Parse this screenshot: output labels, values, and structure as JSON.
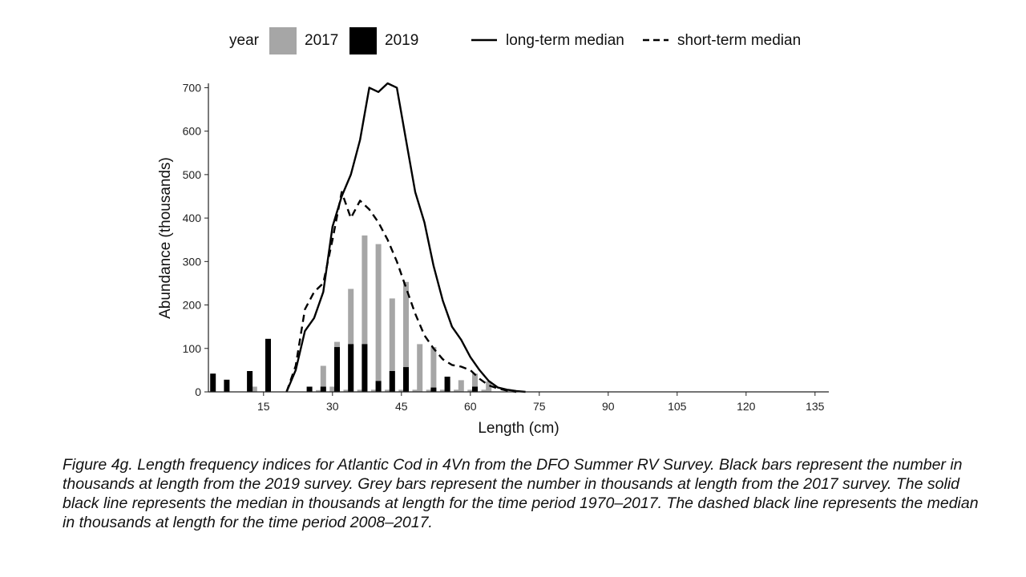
{
  "chart_data": {
    "type": "bar",
    "xlabel": "Length (cm)",
    "ylabel": "Abundance (thousands)",
    "xlim": [
      3,
      138
    ],
    "ylim": [
      0,
      710
    ],
    "xticks": [
      15,
      30,
      45,
      60,
      75,
      90,
      105,
      120,
      135
    ],
    "yticks": [
      0,
      100,
      200,
      300,
      400,
      500,
      600,
      700
    ],
    "grid": false,
    "legend_position": "top",
    "legend_title": "year",
    "series": [
      {
        "name": "2017",
        "kind": "bar",
        "color": "#a6a6a6",
        "x": [
          13,
          25,
          27,
          28,
          30,
          31,
          33,
          34,
          36,
          37,
          39,
          40,
          42,
          43,
          45,
          46,
          48,
          49,
          51,
          52,
          54,
          55,
          57,
          58,
          60,
          61,
          63,
          64
        ],
        "values": [
          12,
          2,
          4,
          60,
          12,
          115,
          5,
          237,
          5,
          360,
          5,
          340,
          5,
          215,
          5,
          253,
          5,
          110,
          5,
          103,
          5,
          27,
          5,
          27,
          5,
          42,
          5,
          24
        ]
      },
      {
        "name": "2019",
        "kind": "bar",
        "color": "#000000",
        "x": [
          4,
          7,
          12,
          16,
          25,
          28,
          31,
          34,
          37,
          40,
          43,
          46,
          49,
          52,
          55,
          58,
          61,
          64
        ],
        "values": [
          42,
          28,
          48,
          122,
          12,
          12,
          103,
          110,
          110,
          25,
          48,
          57,
          0,
          10,
          35,
          0,
          12,
          0
        ]
      },
      {
        "name": "long-term median",
        "kind": "line",
        "style": "solid",
        "x": [
          20,
          22,
          24,
          26,
          28,
          30,
          32,
          34,
          36,
          38,
          40,
          42,
          44,
          46,
          48,
          50,
          52,
          54,
          56,
          58,
          60,
          62,
          64,
          66,
          68,
          70,
          72
        ],
        "values": [
          0,
          50,
          140,
          170,
          230,
          380,
          450,
          500,
          580,
          700,
          690,
          710,
          700,
          580,
          460,
          390,
          290,
          210,
          150,
          120,
          80,
          50,
          25,
          10,
          5,
          2,
          0
        ]
      },
      {
        "name": "short-term median",
        "kind": "line",
        "style": "dashed",
        "x": [
          20,
          22,
          24,
          26,
          28,
          30,
          32,
          34,
          36,
          38,
          40,
          42,
          44,
          46,
          48,
          50,
          52,
          54,
          56,
          58,
          60,
          62,
          64,
          66,
          68,
          70
        ],
        "values": [
          0,
          60,
          190,
          230,
          250,
          350,
          460,
          400,
          440,
          420,
          390,
          350,
          300,
          240,
          180,
          130,
          100,
          75,
          62,
          58,
          50,
          30,
          15,
          8,
          3,
          0
        ]
      }
    ]
  },
  "caption": "Figure 4g. Length frequency indices for Atlantic Cod in 4Vn from the DFO Summer RV Survey. Black bars represent the number in thousands at length from the 2019 survey. Grey bars represent the number in thousands at length from the 2017 survey. The solid black line represents the median in thousands at length for the time period 1970–2017. The dashed black line represents the median in thousands at length for the time period 2008–2017."
}
